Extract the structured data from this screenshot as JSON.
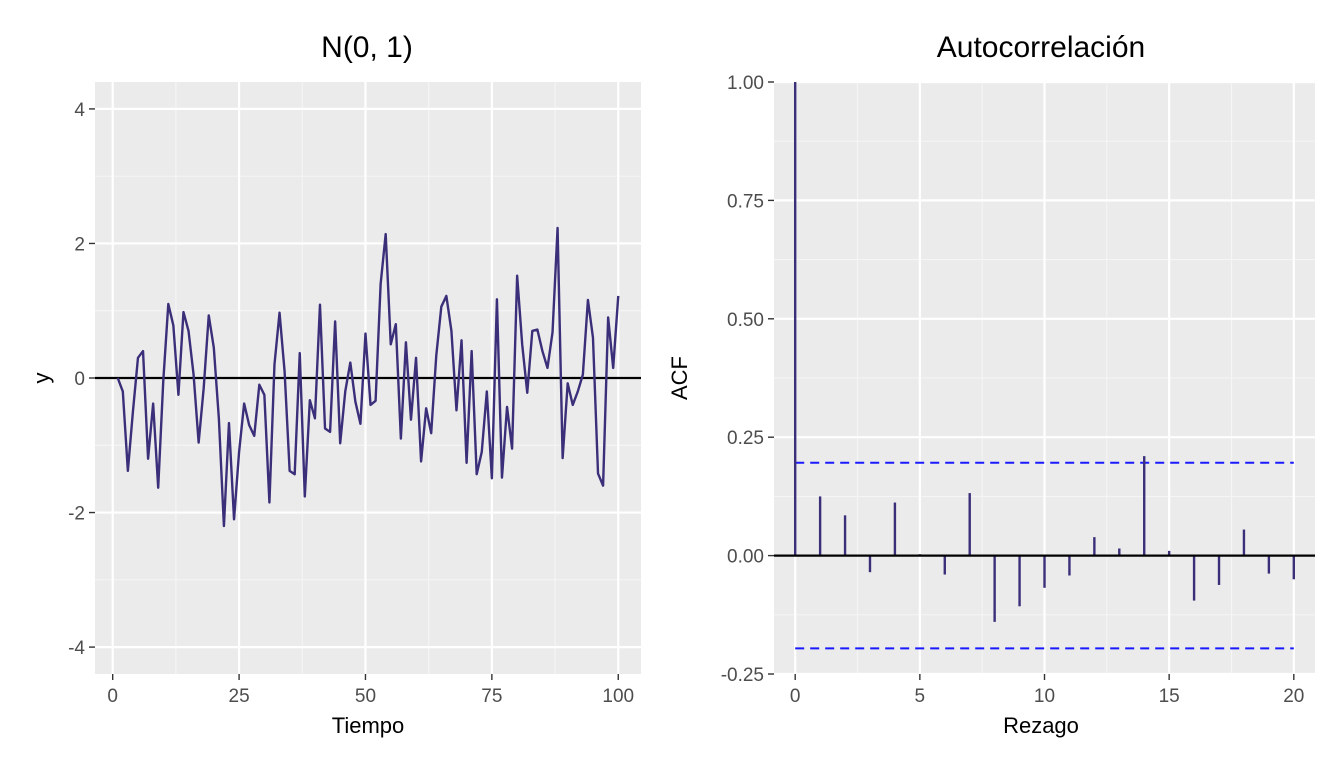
{
  "chart_data": [
    {
      "type": "line",
      "title": "N(0, 1)",
      "xlabel": "Tiempo",
      "ylabel": "y",
      "xlim": [
        -3.5,
        104.5
      ],
      "ylim": [
        -4.4,
        4.4
      ],
      "xticks": [
        0,
        25,
        50,
        75,
        100
      ],
      "yticks": [
        -4,
        -2,
        0,
        2,
        4
      ],
      "xtick_labels": [
        "0",
        "25",
        "50",
        "75",
        "100"
      ],
      "ytick_labels": [
        "-4",
        "-2",
        "0",
        "2",
        "4"
      ],
      "grid": true,
      "hline": 0,
      "color": "#3b2f7a",
      "x": [
        1,
        2,
        3,
        4,
        5,
        6,
        7,
        8,
        9,
        10,
        11,
        12,
        13,
        14,
        15,
        16,
        17,
        18,
        19,
        20,
        21,
        22,
        23,
        24,
        25,
        26,
        27,
        28,
        29,
        30,
        31,
        32,
        33,
        34,
        35,
        36,
        37,
        38,
        39,
        40,
        41,
        42,
        43,
        44,
        45,
        46,
        47,
        48,
        49,
        50,
        51,
        52,
        53,
        54,
        55,
        56,
        57,
        58,
        59,
        60,
        61,
        62,
        63,
        64,
        65,
        66,
        67,
        68,
        69,
        70,
        71,
        72,
        73,
        74,
        75,
        76,
        77,
        78,
        79,
        80,
        81,
        82,
        83,
        84,
        85,
        86,
        87,
        88,
        89,
        90,
        91,
        92,
        93,
        94,
        95,
        96,
        97,
        98,
        99,
        100
      ],
      "y": [
        0.0,
        -0.2,
        -1.38,
        -0.5,
        0.3,
        0.4,
        -1.2,
        -0.38,
        -1.63,
        -0.05,
        1.1,
        0.78,
        -0.25,
        0.98,
        0.7,
        0.05,
        -0.96,
        -0.15,
        0.93,
        0.45,
        -0.6,
        -2.2,
        -0.67,
        -2.1,
        -1.1,
        -0.38,
        -0.7,
        -0.86,
        -0.1,
        -0.25,
        -1.85,
        0.2,
        0.97,
        0.1,
        -1.38,
        -1.43,
        0.37,
        -1.76,
        -0.33,
        -0.6,
        1.09,
        -0.75,
        -0.8,
        0.84,
        -0.97,
        -0.2,
        0.23,
        -0.35,
        -0.68,
        0.66,
        -0.4,
        -0.34,
        1.4,
        2.14,
        0.5,
        0.8,
        -0.9,
        0.53,
        -0.62,
        0.3,
        -1.24,
        -0.45,
        -0.82,
        0.33,
        1.06,
        1.22,
        0.7,
        -0.48,
        0.56,
        -1.26,
        0.4,
        -1.43,
        -1.1,
        -0.2,
        -1.49,
        1.17,
        -1.48,
        -0.43,
        -1.05,
        1.52,
        0.5,
        -0.22,
        0.7,
        0.72,
        0.4,
        0.15,
        0.68,
        2.23,
        -1.19,
        -0.08,
        -0.4,
        -0.2,
        0.05,
        1.16,
        0.6,
        -1.42,
        -1.6,
        0.9,
        0.15,
        1.22
      ]
    },
    {
      "type": "bar",
      "title": "Autocorrelación",
      "xlabel": "Rezago",
      "ylabel": "ACF",
      "xlim": [
        -0.85,
        20.85
      ],
      "ylim": [
        -0.25,
        1.0
      ],
      "xticks": [
        0,
        5,
        10,
        15,
        20
      ],
      "yticks": [
        -0.25,
        0,
        0.25,
        0.5,
        0.75,
        1.0
      ],
      "xtick_labels": [
        "0",
        "5",
        "10",
        "15",
        "20"
      ],
      "ytick_labels": [
        "-0.25",
        "0.00",
        "0.25",
        "0.50",
        "0.75",
        "1.00"
      ],
      "grid": true,
      "hline": 0,
      "color": "#3b2f7a",
      "ci_color": "#1a1aff",
      "ci": [
        0.196,
        -0.196
      ],
      "lags": [
        0,
        1,
        2,
        3,
        4,
        5,
        6,
        7,
        8,
        9,
        10,
        11,
        12,
        13,
        14,
        15,
        16,
        17,
        18,
        19,
        20
      ],
      "values": [
        1.0,
        0.125,
        0.085,
        -0.035,
        0.112,
        0.003,
        -0.04,
        0.132,
        -0.14,
        -0.107,
        -0.068,
        -0.042,
        0.039,
        0.015,
        0.21,
        0.01,
        -0.095,
        -0.062,
        0.055,
        -0.038,
        -0.05
      ]
    }
  ]
}
